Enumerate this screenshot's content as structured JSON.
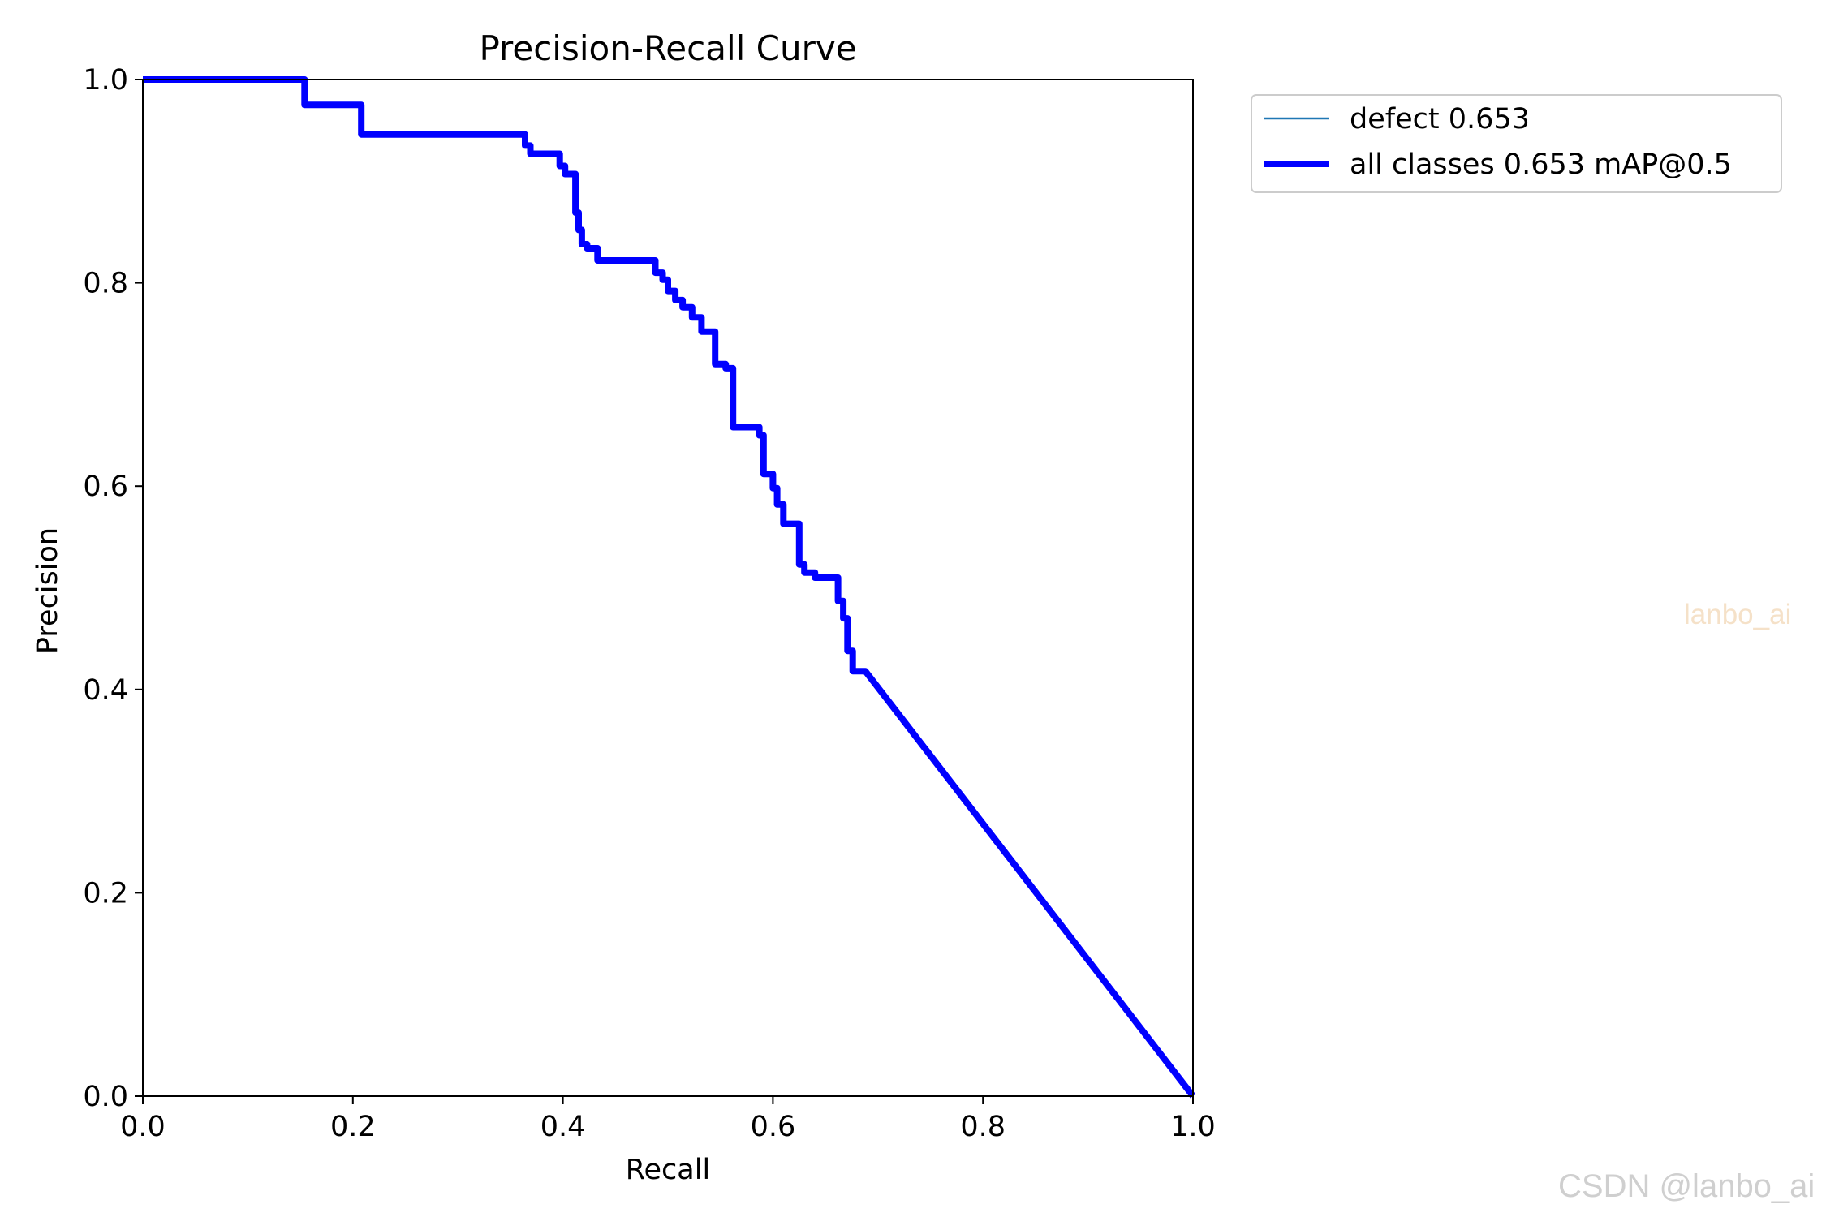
{
  "watermarks": {
    "center": "lanbo_ai",
    "corner": "CSDN @lanbo_ai"
  },
  "colors": {
    "all_classes": "#0000ff",
    "defect": "#1f77b4",
    "axes": "#000000"
  },
  "chart_data": {
    "type": "line",
    "title": "Precision-Recall Curve",
    "xlabel": "Recall",
    "ylabel": "Precision",
    "xlim": [
      0.0,
      1.0
    ],
    "ylim": [
      0.0,
      1.0
    ],
    "xticks": [
      "0.0",
      "0.2",
      "0.4",
      "0.6",
      "0.8",
      "1.0"
    ],
    "yticks": [
      "0.0",
      "0.2",
      "0.4",
      "0.6",
      "0.8",
      "1.0"
    ],
    "grid": false,
    "legend_position": "outside top-right",
    "series": [
      {
        "name": "defect 0.653",
        "style": "thin",
        "x": [],
        "y": []
      },
      {
        "name": "all classes 0.653 mAP@0.5",
        "style": "thick",
        "x": [
          0.0,
          0.154,
          0.154,
          0.208,
          0.208,
          0.364,
          0.364,
          0.369,
          0.369,
          0.397,
          0.397,
          0.402,
          0.402,
          0.412,
          0.412,
          0.415,
          0.415,
          0.418,
          0.418,
          0.423,
          0.423,
          0.433,
          0.433,
          0.449,
          0.449,
          0.488,
          0.488,
          0.495,
          0.495,
          0.5,
          0.5,
          0.507,
          0.507,
          0.514,
          0.514,
          0.523,
          0.523,
          0.532,
          0.532,
          0.545,
          0.545,
          0.555,
          0.555,
          0.562,
          0.562,
          0.587,
          0.587,
          0.591,
          0.591,
          0.6,
          0.6,
          0.604,
          0.604,
          0.61,
          0.61,
          0.625,
          0.625,
          0.63,
          0.63,
          0.64,
          0.64,
          0.662,
          0.662,
          0.667,
          0.667,
          0.671,
          0.671,
          0.676,
          0.676,
          0.688,
          0.688,
          1.0
        ],
        "y": [
          1.0,
          1.0,
          0.975,
          0.975,
          0.946,
          0.946,
          0.935,
          0.935,
          0.927,
          0.927,
          0.915,
          0.915,
          0.907,
          0.907,
          0.869,
          0.869,
          0.852,
          0.852,
          0.838,
          0.838,
          0.834,
          0.834,
          0.822,
          0.822,
          0.822,
          0.822,
          0.81,
          0.81,
          0.803,
          0.803,
          0.792,
          0.792,
          0.783,
          0.783,
          0.776,
          0.776,
          0.766,
          0.766,
          0.752,
          0.752,
          0.72,
          0.72,
          0.716,
          0.716,
          0.658,
          0.658,
          0.65,
          0.65,
          0.612,
          0.612,
          0.598,
          0.598,
          0.582,
          0.582,
          0.563,
          0.563,
          0.523,
          0.523,
          0.515,
          0.515,
          0.51,
          0.51,
          0.487,
          0.487,
          0.47,
          0.47,
          0.438,
          0.438,
          0.418,
          0.418,
          0.418,
          0.0
        ]
      }
    ]
  }
}
